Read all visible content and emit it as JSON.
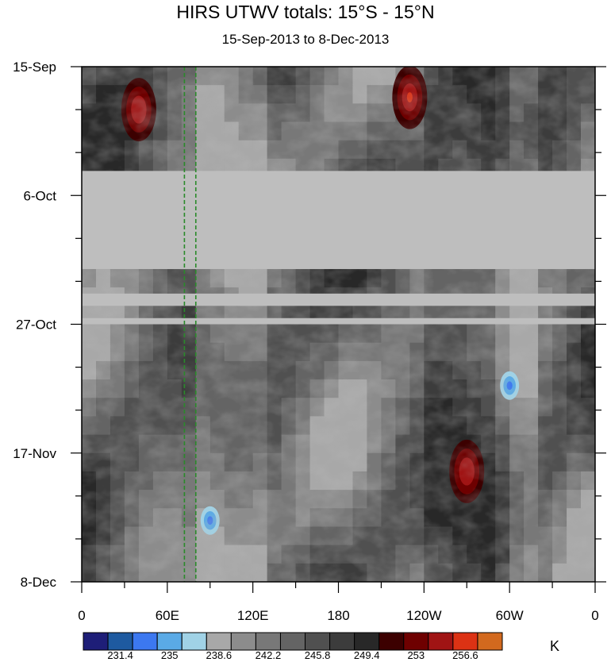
{
  "title": "HIRS UTWV totals: 15°S - 15°N",
  "subtitle": "15-Sep-2013 to 8-Dec-2013",
  "chart_data": {
    "type": "heatmap",
    "title": "HIRS UTWV totals: 15°S - 15°N",
    "subtitle": "15-Sep-2013 to 8-Dec-2013",
    "x_ticks": [
      "0",
      "60E",
      "120E",
      "180",
      "120W",
      "60W",
      "0"
    ],
    "y_ticks": [
      "15-Sep",
      "6-Oct",
      "27-Oct",
      "17-Nov",
      "8-Dec"
    ],
    "x_range": [
      "0",
      "0"
    ],
    "y_range": [
      "15-Sep-2013",
      "8-Dec-2013"
    ],
    "colorbar": {
      "unit": "K",
      "levels": [
        229.6,
        231.4,
        233.2,
        235,
        236.8,
        238.6,
        240.4,
        242.2,
        244,
        245.8,
        247.6,
        249.4,
        251.2,
        253,
        254.8,
        256.6,
        258.4
      ],
      "labels": [
        "231.4",
        "235",
        "238.6",
        "242.2",
        "245.8",
        "249.4",
        "253",
        "256.6"
      ],
      "colors": [
        "#1e1e78",
        "#1e5aa0",
        "#3c78f0",
        "#5aaae6",
        "#a0d2e6",
        "#a8a8a8",
        "#8c8c8c",
        "#787878",
        "#646464",
        "#505050",
        "#3c3c3c",
        "#282828",
        "#3c0000",
        "#6e0000",
        "#a01414",
        "#dc3214",
        "#d2691e"
      ]
    },
    "missing_data_bands": [
      {
        "start": "2-Oct-2013",
        "end": "18-Oct-2013"
      },
      {
        "start": "22-Oct-2013",
        "end": "24-Oct-2013"
      },
      {
        "start": "26-Oct-2013",
        "end": "27-Oct-2013"
      }
    ],
    "reference_lines": {
      "style": "dashed",
      "color": "#2a8a2a",
      "longitudes_deg": [
        72,
        80
      ]
    },
    "warm_regions": [
      {
        "lon_deg": 230,
        "date": "20-Sep-2013",
        "level": "hot"
      },
      {
        "lon_deg": 270,
        "date": "20-Nov-2013",
        "level": "warm"
      },
      {
        "lon_deg": 40,
        "date": "22-Sep-2013",
        "level": "warm"
      }
    ],
    "cold_regions": [
      {
        "lon_deg": 90,
        "date": "28-Nov-2013",
        "level": "cold"
      },
      {
        "lon_deg": 300,
        "date": "6-Nov-2013",
        "level": "cold"
      }
    ]
  }
}
